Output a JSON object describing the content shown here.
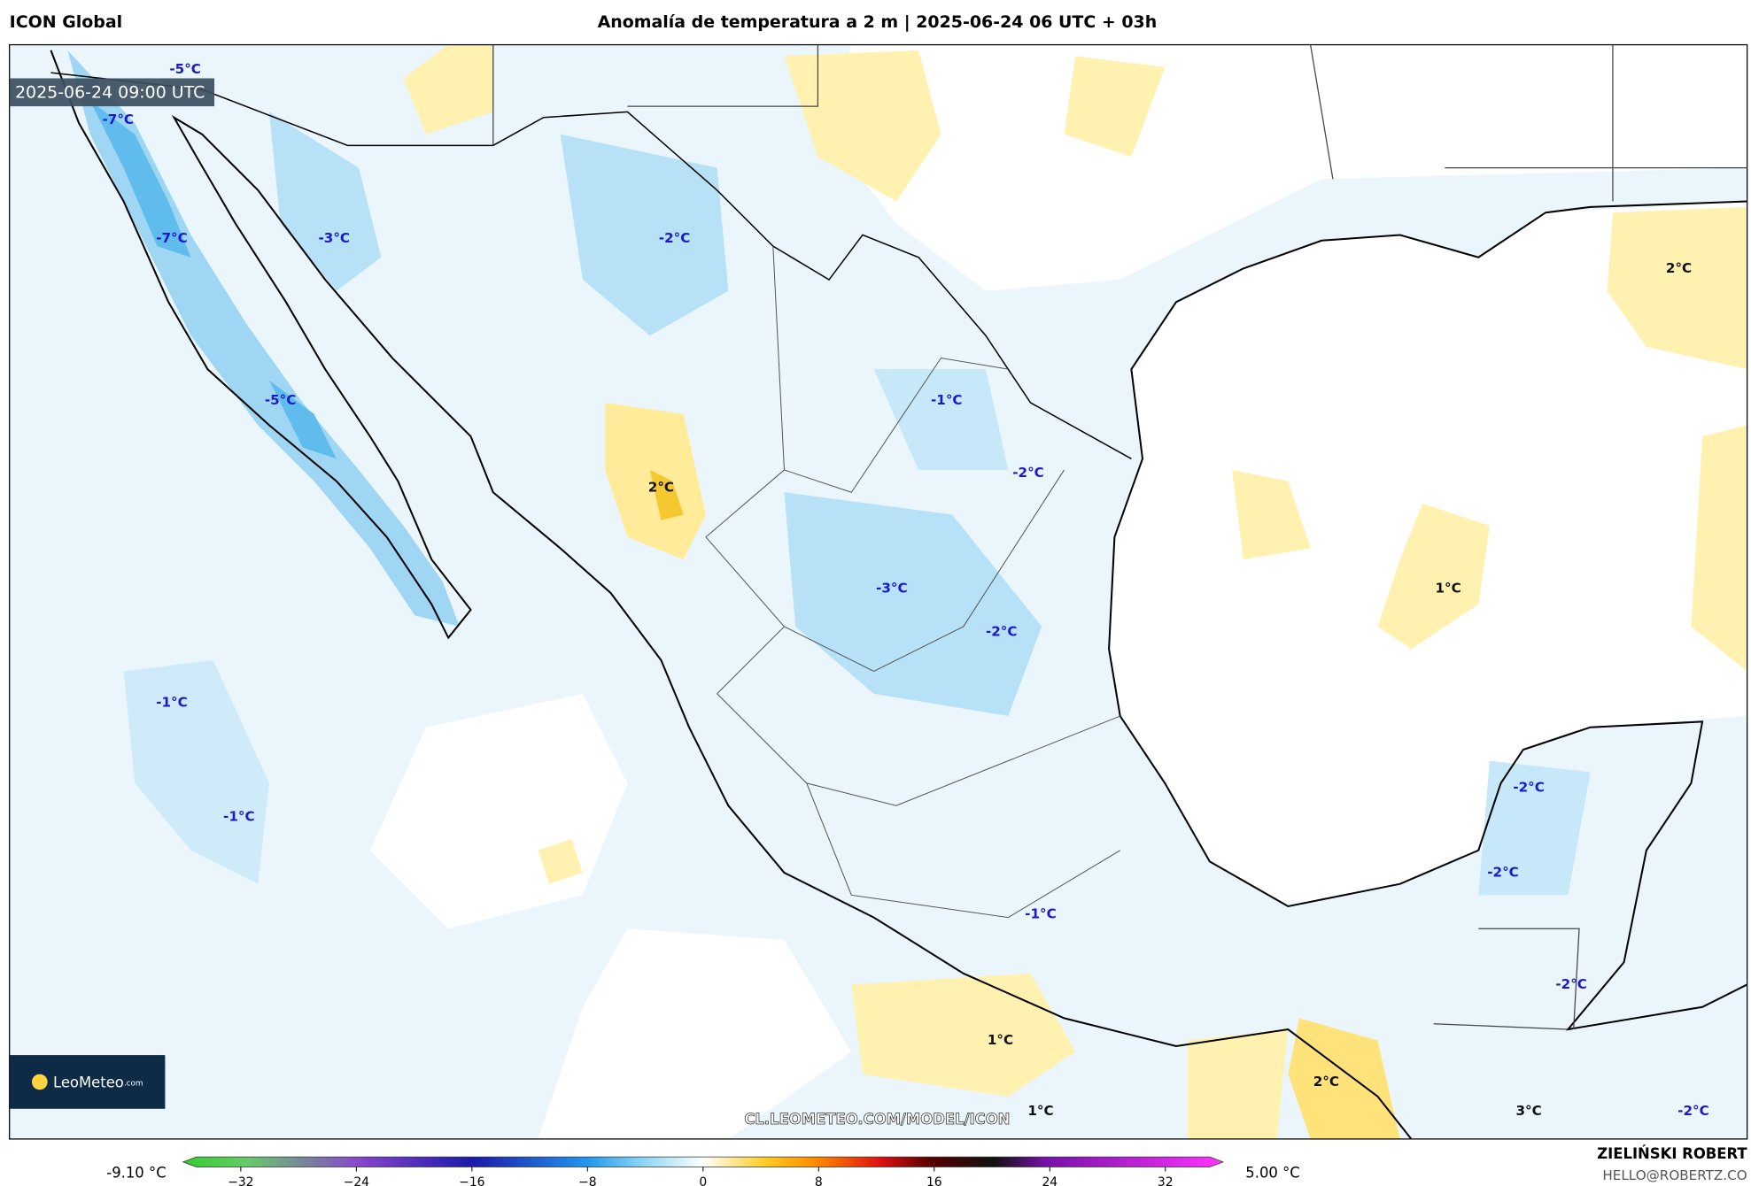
{
  "header": {
    "model": "ICON Global",
    "title": "Anomalía de temperatura a 2 m | 2025-06-24 06 UTC + 03h"
  },
  "map": {
    "valid_time": "2025-06-24 09:00 UTC",
    "labels": [
      "-5°C",
      "-7°C",
      "-7°C",
      "-3°C",
      "-2°C",
      "-1°C",
      "-5°C",
      "-2°C",
      "2°C",
      "-3°C",
      "1°C",
      "-2°C",
      "2°C",
      "-1°C",
      "-1°C",
      "-2°C",
      "-2°C",
      "-1°C",
      "-2°C",
      "1°C",
      "2°C",
      "1°C",
      "3°C",
      "-2°C"
    ],
    "watermark": "CL.LEOMETEO.COM/MODEL/ICON",
    "logo": {
      "name": "LeoMeteo",
      "suffix": ".com"
    }
  },
  "colorbar": {
    "lim": [
      -36,
      36
    ],
    "ticks": [
      {
        "value": -32,
        "label": "−32"
      },
      {
        "value": -24,
        "label": "−24"
      },
      {
        "value": -16,
        "label": "−16"
      },
      {
        "value": -8,
        "label": "−8"
      },
      0,
      8,
      16,
      24,
      32
    ],
    "min_label": "-9.10 °C",
    "max_label": "5.00 °C"
  },
  "footer": {
    "author": "ZIELIŃSKI ROBERT",
    "email": "HELLO@ROBERTZ.CO"
  }
}
